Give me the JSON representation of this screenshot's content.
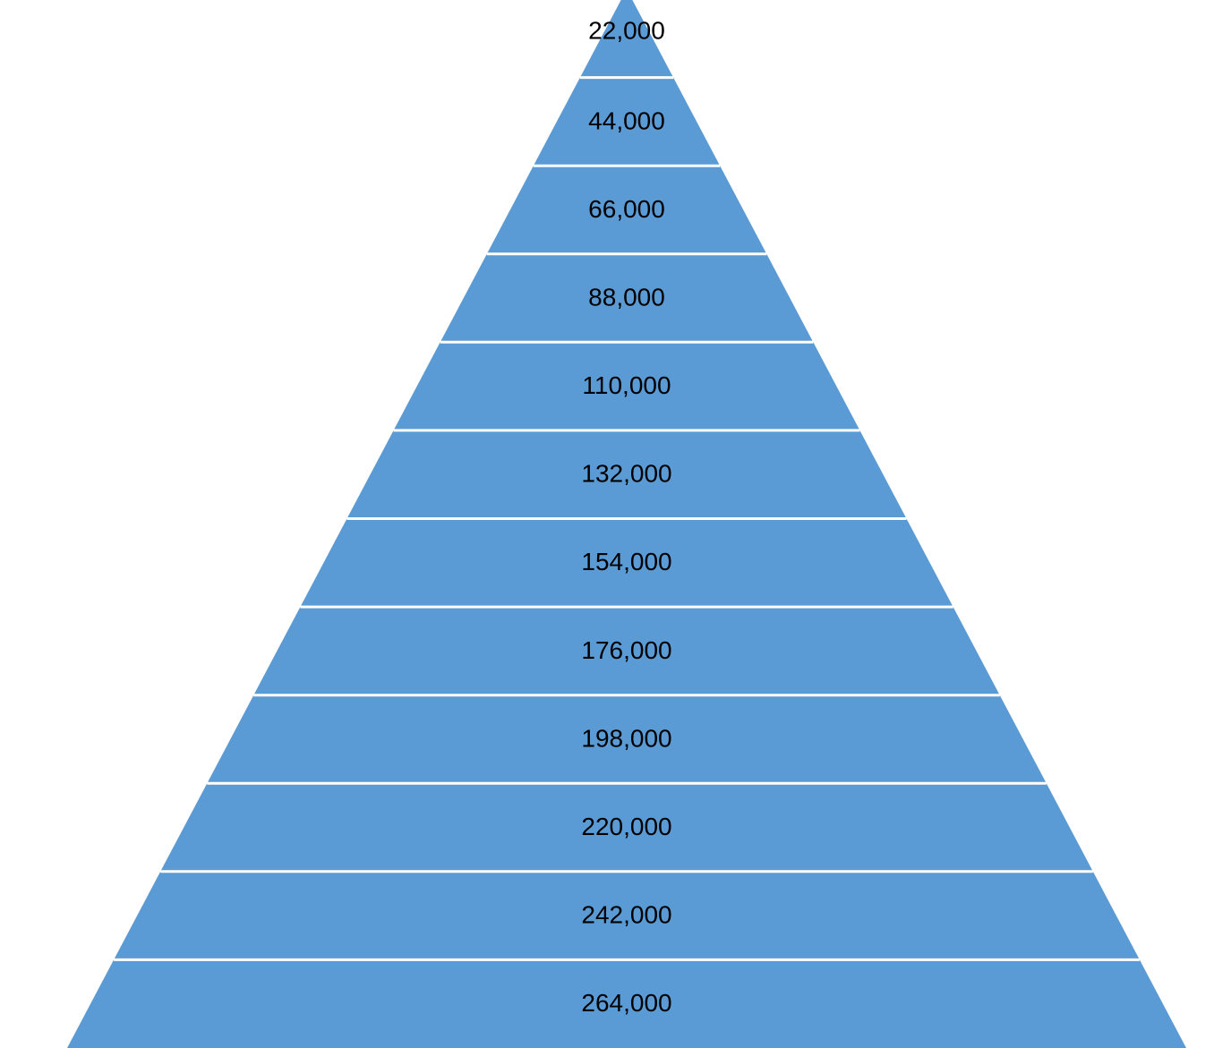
{
  "diagram": {
    "type": "pyramid",
    "fill_color": "#5b9bd5",
    "divider_color": "#ffffff",
    "tiers": [
      {
        "label": "22,000"
      },
      {
        "label": "44,000"
      },
      {
        "label": "66,000"
      },
      {
        "label": "88,000"
      },
      {
        "label": "110,000"
      },
      {
        "label": "132,000"
      },
      {
        "label": "154,000"
      },
      {
        "label": "176,000"
      },
      {
        "label": "198,000"
      },
      {
        "label": "220,000"
      },
      {
        "label": "242,000"
      },
      {
        "label": "264,000"
      }
    ]
  }
}
